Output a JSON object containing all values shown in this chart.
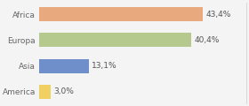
{
  "categories": [
    "Africa",
    "Europa",
    "Asia",
    "America"
  ],
  "values": [
    43.4,
    40.4,
    13.1,
    3.0
  ],
  "labels": [
    "43,4%",
    "40,4%",
    "13,1%",
    "3,0%"
  ],
  "bar_colors": [
    "#e8a97e",
    "#b5c98e",
    "#6e8fc9",
    "#f0d060"
  ],
  "background_color": "#f4f4f4",
  "xlim": [
    0,
    55
  ],
  "label_fontsize": 6.5,
  "tick_fontsize": 6.5,
  "bar_height": 0.55
}
